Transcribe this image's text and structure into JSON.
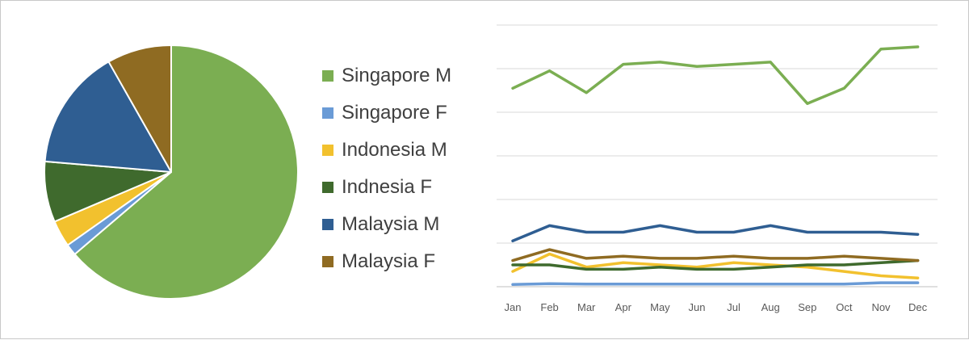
{
  "chart_data": [
    {
      "type": "pie",
      "series": [
        {
          "name": "Singapore M",
          "value": 66.0,
          "color": "#7BAE52"
        },
        {
          "name": "Singapore F",
          "value": 1.5,
          "color": "#6A9BD6"
        },
        {
          "name": "Indonesia M",
          "value": 3.5,
          "color": "#F2C12E"
        },
        {
          "name": "Indnesia F",
          "value": 8.0,
          "color": "#3F6A2D"
        },
        {
          "name": "Malaysia M",
          "value": 16.0,
          "color": "#2F5E92"
        },
        {
          "name": "Malaysia F",
          "value": 8.5,
          "color": "#8F6B22"
        }
      ],
      "legend_position": "right"
    },
    {
      "type": "line",
      "categories": [
        "Jan",
        "Feb",
        "Mar",
        "Apr",
        "May",
        "Jun",
        "Jul",
        "Aug",
        "Sep",
        "Oct",
        "Nov",
        "Dec"
      ],
      "ylim": [
        0,
        6
      ],
      "gridlines": [
        0,
        1,
        2,
        3,
        4,
        5,
        6
      ],
      "y_tick_labels_visible": false,
      "grid": true,
      "series": [
        {
          "name": "Singapore M",
          "color": "#7BAE52",
          "values": [
            4.55,
            4.95,
            4.45,
            5.1,
            5.15,
            5.05,
            5.1,
            5.15,
            4.2,
            4.55,
            5.45,
            5.5
          ]
        },
        {
          "name": "Singapore F",
          "color": "#6A9BD6",
          "values": [
            0.05,
            0.07,
            0.06,
            0.06,
            0.06,
            0.06,
            0.06,
            0.06,
            0.06,
            0.06,
            0.09,
            0.09
          ]
        },
        {
          "name": "Indonesia M",
          "color": "#F2C12E",
          "values": [
            0.35,
            0.75,
            0.45,
            0.55,
            0.5,
            0.45,
            0.55,
            0.5,
            0.45,
            0.35,
            0.25,
            0.2
          ]
        },
        {
          "name": "Indnesia F",
          "color": "#3F6A2D",
          "values": [
            0.5,
            0.5,
            0.4,
            0.4,
            0.45,
            0.4,
            0.4,
            0.45,
            0.5,
            0.5,
            0.55,
            0.6
          ]
        },
        {
          "name": "Malaysia M",
          "color": "#2F5E92",
          "values": [
            1.05,
            1.4,
            1.25,
            1.25,
            1.4,
            1.25,
            1.25,
            1.4,
            1.25,
            1.25,
            1.25,
            1.2
          ]
        },
        {
          "name": "Malaysia F",
          "color": "#8F6B22",
          "values": [
            0.6,
            0.85,
            0.65,
            0.7,
            0.65,
            0.65,
            0.7,
            0.65,
            0.65,
            0.7,
            0.65,
            0.6
          ]
        }
      ]
    }
  ]
}
